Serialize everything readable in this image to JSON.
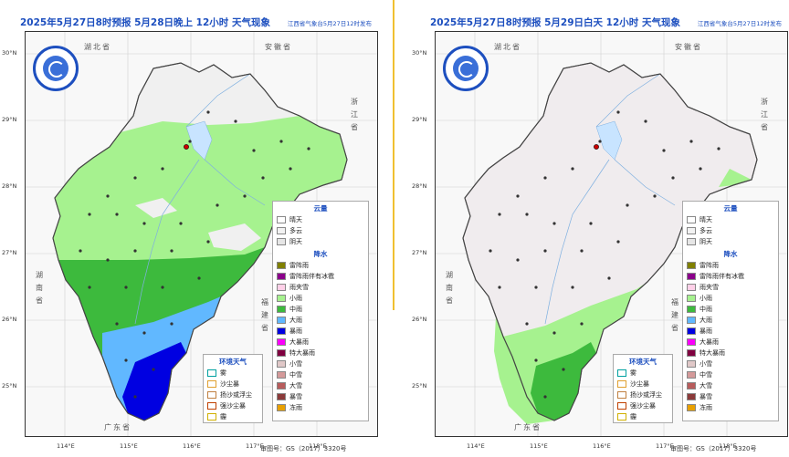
{
  "panels": [
    {
      "title": "2025年5月27日8时预报  5月28日晚上 12小时  天气现象",
      "source": "江西省气象台5月27日12时发布",
      "review_number": "审图号：GS（2017）3320号"
    },
    {
      "title": "2025年5月27日8时预报  5月29日白天 12小时  天气现象",
      "source": "江西省气象台5月27日12时发布",
      "review_number": "审图号：GS（2017）3320号"
    }
  ],
  "axes": {
    "lat_labels": [
      "30°N",
      "29°N",
      "28°N",
      "27°N",
      "26°N",
      "25°N"
    ],
    "lon_labels": [
      "114°E",
      "115°E",
      "116°E",
      "117°E",
      "118°E"
    ]
  },
  "provinces": {
    "hubei": "湖北省",
    "anhui": "安徽省",
    "zhejiang": "浙江省",
    "hunan": "湖南省",
    "fujian": "福建省",
    "guangdong": "广东省"
  },
  "legend": {
    "cloud_title": "云量",
    "cloud_items": [
      {
        "label": "晴天",
        "color": "#ffffff"
      },
      {
        "label": "多云",
        "color": "#f2f2f2"
      },
      {
        "label": "阴天",
        "color": "#e6e6e6"
      }
    ],
    "precip_title": "降水",
    "precip_items": [
      {
        "label": "雷阵雨",
        "color": "#808000"
      },
      {
        "label": "雷阵雨伴有冰雹",
        "color": "#8b008b"
      },
      {
        "label": "雨夹雪",
        "color": "#ffd0e8"
      },
      {
        "label": "小雨",
        "color": "#a6f28f"
      },
      {
        "label": "中雨",
        "color": "#3dba3d"
      },
      {
        "label": "大雨",
        "color": "#61b8ff"
      },
      {
        "label": "暴雨",
        "color": "#0000e1"
      },
      {
        "label": "大暴雨",
        "color": "#fa00fa"
      },
      {
        "label": "特大暴雨",
        "color": "#800040"
      },
      {
        "label": "小雪",
        "color": "#e0c8c8"
      },
      {
        "label": "中雪",
        "color": "#d49a9a"
      },
      {
        "label": "大雪",
        "color": "#b85c5c"
      },
      {
        "label": "暴雪",
        "color": "#8b3a3a"
      },
      {
        "label": "冻雨",
        "color": "#e8a000"
      }
    ],
    "env_title": "环境天气",
    "env_items": [
      {
        "label": "雾",
        "color": "#00a0a0"
      },
      {
        "label": "沙尘暴",
        "color": "#e0a030"
      },
      {
        "label": "扬沙或浮尘",
        "color": "#c08040"
      },
      {
        "label": "强沙尘暴",
        "color": "#c04000"
      },
      {
        "label": "霾",
        "color": "#d0b000"
      }
    ]
  }
}
